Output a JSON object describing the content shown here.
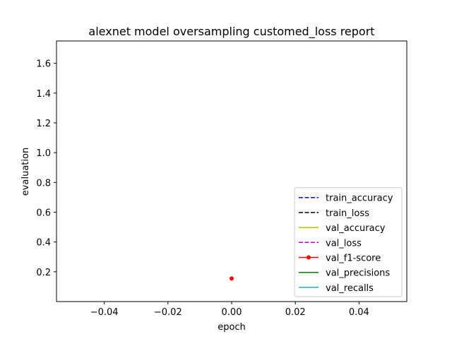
{
  "chart_data": {
    "type": "line",
    "title": "alexnet model oversampling customed_loss report",
    "xlabel": "epoch",
    "ylabel": "evaluation",
    "xlim": [
      -0.055,
      0.055
    ],
    "ylim": [
      0.0,
      1.75
    ],
    "x_ticks": [
      -0.04,
      -0.02,
      0.0,
      0.02,
      0.04
    ],
    "x_tick_labels": [
      "−0.04",
      "−0.02",
      "0.00",
      "0.02",
      "0.04"
    ],
    "y_ticks": [
      0.2,
      0.4,
      0.6,
      0.8,
      1.0,
      1.2,
      1.4,
      1.6
    ],
    "y_tick_labels": [
      "0.2",
      "0.4",
      "0.6",
      "0.8",
      "1.0",
      "1.2",
      "1.4",
      "1.6"
    ],
    "grid": false,
    "legend_position": "lower right",
    "series": [
      {
        "name": "train_accuracy",
        "color": "#0000ff",
        "linestyle": "dashed",
        "marker": "none",
        "x": [],
        "y": []
      },
      {
        "name": "train_loss",
        "color": "#000000",
        "linestyle": "dashed",
        "marker": "none",
        "x": [],
        "y": []
      },
      {
        "name": "val_accuracy",
        "color": "#bfbf00",
        "linestyle": "solid",
        "marker": "none",
        "x": [],
        "y": []
      },
      {
        "name": "val_loss",
        "color": "#bf00bf",
        "linestyle": "dashed",
        "marker": "none",
        "x": [],
        "y": []
      },
      {
        "name": "val_f1-score",
        "color": "#ff0000",
        "linestyle": "solid",
        "marker": "dot",
        "x": [
          0.0
        ],
        "y": [
          0.155
        ]
      },
      {
        "name": "val_precisions",
        "color": "#008000",
        "linestyle": "solid",
        "marker": "none",
        "x": [],
        "y": []
      },
      {
        "name": "val_recalls",
        "color": "#00bfbf",
        "linestyle": "solid",
        "marker": "none",
        "x": [],
        "y": []
      }
    ]
  }
}
